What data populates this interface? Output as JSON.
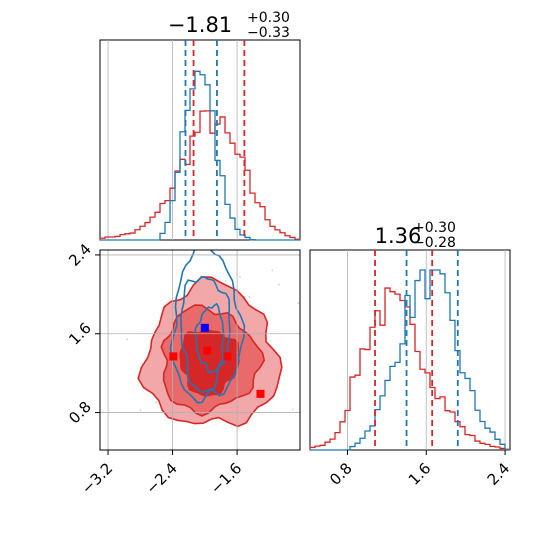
{
  "chart_data": [
    {
      "panel": "top-left",
      "type": "histogram",
      "title_value": "−1.81",
      "title_sup": "+0.30",
      "title_sub": "−0.33",
      "xlim": [
        -3.3,
        -0.82
      ],
      "grid": true,
      "series": [
        {
          "name": "",
          "color": "#1f77b4",
          "x": [
            -2.55,
            -2.5,
            -2.45,
            -2.4,
            -2.35,
            -2.3,
            -2.25,
            -2.2,
            -2.15,
            -2.1,
            -2.05,
            -2.0,
            -1.95,
            -1.9,
            -1.85,
            -1.8,
            -1.75,
            -1.7,
            -1.65,
            -1.6,
            -1.55,
            -1.5,
            -1.45,
            -1.4
          ],
          "density": [
            0.02,
            0.05,
            0.1,
            0.22,
            0.38,
            0.55,
            0.7,
            0.8,
            0.88,
            0.95,
            1.0,
            0.92,
            0.82,
            0.68,
            0.5,
            0.36,
            0.25,
            0.17,
            0.1,
            0.06,
            0.03,
            0.02,
            0.01,
            0.0
          ],
          "quantiles": [
            -2.24,
            -1.85
          ]
        },
        {
          "name": "",
          "color": "#d62728",
          "x": [
            -3.3,
            -3.2,
            -3.1,
            -3.0,
            -2.9,
            -2.8,
            -2.7,
            -2.6,
            -2.5,
            -2.4,
            -2.3,
            -2.2,
            -2.1,
            -2.0,
            -1.9,
            -1.8,
            -1.7,
            -1.6,
            -1.5,
            -1.4,
            -1.3,
            -1.2,
            -1.1,
            -1.0,
            -0.9,
            -0.82
          ],
          "density": [
            0.01,
            0.015,
            0.02,
            0.03,
            0.04,
            0.06,
            0.1,
            0.14,
            0.2,
            0.3,
            0.4,
            0.5,
            0.6,
            0.65,
            0.67,
            0.62,
            0.55,
            0.47,
            0.38,
            0.26,
            0.18,
            0.1,
            0.06,
            0.03,
            0.01,
            0.0
          ],
          "quantiles": [
            -2.14,
            -1.51
          ]
        }
      ]
    },
    {
      "panel": "bottom-right",
      "type": "histogram",
      "title_value": "1.36",
      "title_sup": "+0.30",
      "title_sub": "−0.28",
      "xlim": [
        0.42,
        2.45
      ],
      "xticks": [
        "0.8",
        "1.6",
        "2.4"
      ],
      "grid": true,
      "series": [
        {
          "name": "",
          "color": "#1f77b4",
          "x": [
            0.8,
            0.9,
            1.0,
            1.1,
            1.2,
            1.3,
            1.4,
            1.5,
            1.6,
            1.7,
            1.8,
            1.9,
            2.0,
            2.1,
            2.2,
            2.3,
            2.4
          ],
          "density": [
            0.0,
            0.04,
            0.1,
            0.2,
            0.35,
            0.55,
            0.75,
            0.88,
            0.98,
            0.95,
            0.8,
            0.6,
            0.4,
            0.25,
            0.14,
            0.07,
            0.02
          ],
          "quantiles": [
            1.4,
            1.92
          ]
        },
        {
          "name": "",
          "color": "#d62728",
          "x": [
            0.42,
            0.5,
            0.6,
            0.7,
            0.8,
            0.9,
            1.0,
            1.1,
            1.2,
            1.3,
            1.4,
            1.5,
            1.6,
            1.7,
            1.8,
            1.9,
            2.0,
            2.1,
            2.2,
            2.3,
            2.45
          ],
          "density": [
            0.01,
            0.02,
            0.04,
            0.1,
            0.25,
            0.45,
            0.62,
            0.75,
            0.8,
            0.78,
            0.72,
            0.6,
            0.48,
            0.35,
            0.25,
            0.17,
            0.1,
            0.06,
            0.03,
            0.02,
            0.0
          ],
          "quantiles": [
            1.08,
            1.66
          ]
        }
      ]
    },
    {
      "panel": "bottom-left",
      "type": "scatter",
      "xlim": [
        -3.3,
        -0.82
      ],
      "ylim": [
        0.42,
        2.45
      ],
      "xticks": [
        "−3.2",
        "−2.4",
        "−1.6"
      ],
      "yticks": [
        "0.8",
        "1.6",
        "2.4"
      ],
      "grid": true,
      "red_contours": [
        {
          "level": "outer",
          "center": [
            -1.92,
            1.36
          ],
          "rx": 0.82,
          "ry": 0.72,
          "fill": "#f2a8a8"
        },
        {
          "level": "middle",
          "center": [
            -1.95,
            1.33
          ],
          "rx": 0.6,
          "ry": 0.52,
          "fill": "#e86a6a"
        },
        {
          "level": "inner",
          "center": [
            -1.95,
            1.32
          ],
          "rx": 0.36,
          "ry": 0.33,
          "fill": "#d62728"
        }
      ],
      "blue_contours": [
        {
          "level": "outer",
          "center": [
            -1.98,
            1.68
          ],
          "rx": 0.42,
          "ry": 0.78
        },
        {
          "level": "middle",
          "center": [
            -2.0,
            1.62
          ],
          "rx": 0.3,
          "ry": 0.58
        },
        {
          "level": "inner",
          "center": [
            -1.93,
            1.55
          ],
          "rx": 0.17,
          "ry": 0.33
        }
      ],
      "blue_markers": [
        [
          -2.0,
          1.66
        ]
      ],
      "red_markers": [
        [
          -2.39,
          1.37
        ],
        [
          -1.97,
          1.43
        ],
        [
          -1.72,
          1.37
        ],
        [
          -1.31,
          0.99
        ]
      ],
      "colors": {
        "blue": "#1f77b4",
        "red": "#d62728",
        "marker_blue": "#0000ff",
        "marker_red": "#ff0000"
      }
    }
  ]
}
